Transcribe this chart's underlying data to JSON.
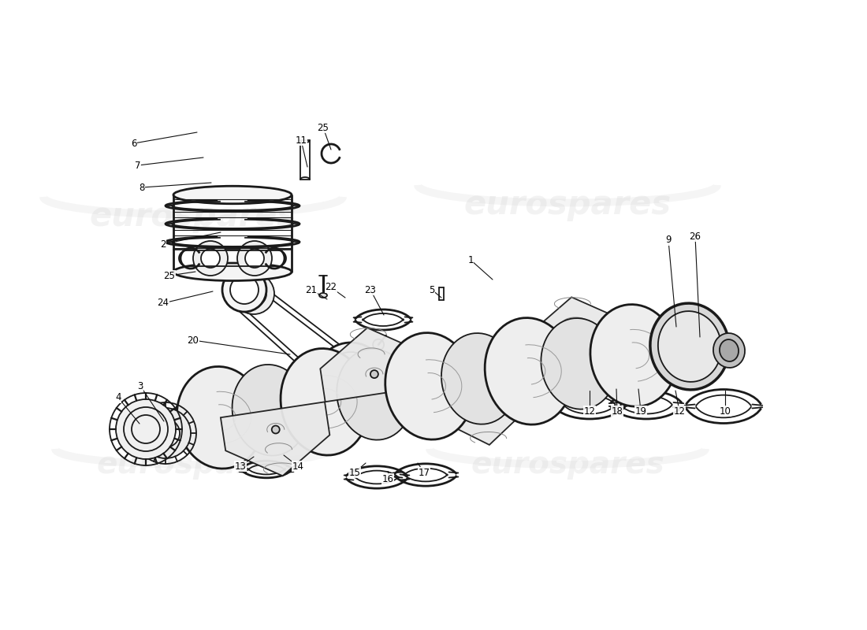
{
  "background_color": "#ffffff",
  "line_color": "#1a1a1a",
  "watermark_color": "#c8c8c8",
  "watermark_alpha": 0.22,
  "figsize": [
    11.0,
    8.0
  ],
  "dpi": 100,
  "callouts": [
    [
      "6",
      170,
      182
    ],
    [
      "7",
      175,
      210
    ],
    [
      "8",
      180,
      238
    ],
    [
      "2",
      205,
      310
    ],
    [
      "25",
      215,
      350
    ],
    [
      "24",
      205,
      385
    ],
    [
      "11",
      382,
      178
    ],
    [
      "25",
      408,
      162
    ],
    [
      "20",
      243,
      430
    ],
    [
      "21",
      395,
      368
    ],
    [
      "22",
      418,
      365
    ],
    [
      "23",
      468,
      368
    ],
    [
      "5",
      545,
      368
    ],
    [
      "1",
      593,
      330
    ],
    [
      "9",
      848,
      305
    ],
    [
      "26",
      878,
      300
    ],
    [
      "4",
      148,
      505
    ],
    [
      "3",
      175,
      490
    ],
    [
      "13",
      302,
      592
    ],
    [
      "14",
      376,
      592
    ],
    [
      "15",
      448,
      600
    ],
    [
      "16",
      490,
      608
    ],
    [
      "17",
      535,
      600
    ],
    [
      "12",
      745,
      522
    ],
    [
      "18",
      783,
      522
    ],
    [
      "19",
      812,
      522
    ],
    [
      "12",
      862,
      522
    ],
    [
      "10",
      918,
      522
    ]
  ]
}
